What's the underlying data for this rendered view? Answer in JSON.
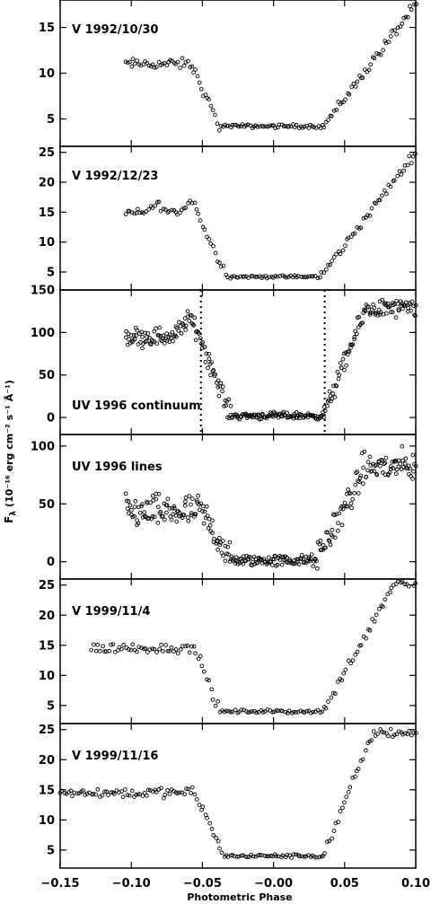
{
  "chart_data": {
    "type": "scatter",
    "xlabel": "Photometric Phase",
    "ylabel_main": "F",
    "ylabel_sub": "λ",
    "ylabel_units": "(10⁻¹⁶ erg cm⁻² s⁻¹ Å⁻¹)",
    "xlim": [
      -0.15,
      0.1
    ],
    "xticks": [
      -0.15,
      -0.1,
      -0.05,
      0.0,
      0.05,
      0.1
    ],
    "xtick_labels": [
      "−0.15",
      "−0.10",
      "−0.05",
      "−0.00",
      "0.05",
      "0.10"
    ],
    "grid": false,
    "panels": [
      {
        "label": "V  1992/10/30",
        "ylim": [
          2,
          18
        ],
        "yticks": [
          5,
          10,
          15
        ],
        "profile": {
          "pre": 11.0,
          "pre_end": -0.058,
          "ingress_end": -0.038,
          "low": 4.2,
          "egress_start": 0.035,
          "end": 0.1,
          "high": 17.5,
          "x_start": -0.104,
          "x_end": 0.1,
          "n": 150,
          "noise": 0.4,
          "bumps": []
        }
      },
      {
        "label": "V  1992/12/23",
        "ylim": [
          2,
          26
        ],
        "yticks": [
          5,
          10,
          15,
          20,
          25
        ],
        "profile": {
          "pre": 14.8,
          "pre_end": -0.055,
          "ingress_end": -0.032,
          "low": 4.2,
          "egress_start": 0.033,
          "end": 0.1,
          "high": 25.0,
          "x_start": -0.104,
          "x_end": 0.1,
          "n": 140,
          "noise": 0.5,
          "bumps": [
            {
              "x": -0.082,
              "a": 1.5
            },
            {
              "x": -0.058,
              "a": 2.0
            }
          ]
        }
      },
      {
        "label": "UV  1996  continuum",
        "ylim": [
          -20,
          150
        ],
        "yticks": [
          0,
          50,
          100,
          150
        ],
        "profile": {
          "pre": 95.0,
          "pre_end": -0.052,
          "ingress_end": -0.03,
          "low": 2.0,
          "egress_start": 0.035,
          "end": 0.065,
          "high": 128.0,
          "x_start": -0.104,
          "x_end": 0.1,
          "n": 320,
          "noise": 8.0,
          "bumps": [
            {
              "x": -0.06,
              "a": 20
            }
          ]
        },
        "markers": [
          -0.051,
          0.036
        ]
      },
      {
        "label": "UV  1996  lines",
        "ylim": [
          -15,
          110
        ],
        "yticks": [
          0,
          50,
          100
        ],
        "profile": {
          "pre": 43.0,
          "pre_end": -0.05,
          "ingress_end": -0.03,
          "low": 1.0,
          "egress_start": 0.03,
          "end": 0.065,
          "high": 82.0,
          "x_start": -0.104,
          "x_end": 0.1,
          "n": 320,
          "noise": 10.0,
          "bumps": []
        }
      },
      {
        "label": "V  1999/11/4",
        "ylim": [
          2,
          26
        ],
        "yticks": [
          5,
          10,
          15,
          20,
          25
        ],
        "profile": {
          "pre": 14.5,
          "pre_end": -0.055,
          "ingress_end": -0.038,
          "low": 4.0,
          "egress_start": 0.035,
          "end": 0.085,
          "high": 25.5,
          "x_start": -0.128,
          "x_end": 0.1,
          "n": 150,
          "noise": 0.6,
          "bumps": []
        }
      },
      {
        "label": "V  1999/11/16",
        "ylim": [
          2,
          26
        ],
        "yticks": [
          5,
          10,
          15,
          20,
          25
        ],
        "profile": {
          "pre": 14.5,
          "pre_end": -0.055,
          "ingress_end": -0.035,
          "low": 4.0,
          "egress_start": 0.035,
          "end": 0.07,
          "high": 24.5,
          "x_start": -0.15,
          "x_end": 0.1,
          "n": 170,
          "noise": 0.6,
          "bumps": []
        }
      }
    ]
  }
}
